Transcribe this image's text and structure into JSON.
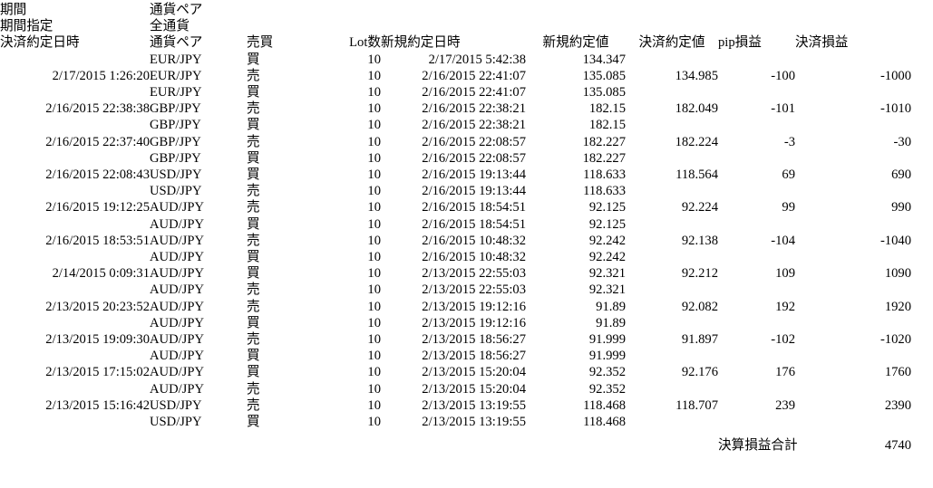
{
  "colors": {
    "text": "#000000",
    "background": "#ffffff"
  },
  "filters": {
    "period_label": "期間",
    "pair_label": "通貨ペア",
    "period_spec_label": "期間指定",
    "pair_value": "全通貨"
  },
  "table": {
    "headers": [
      "決済約定日時",
      "通貨ペア",
      "売買",
      "Lot数",
      "新規約定日時",
      "新規約定値",
      "決済約定値",
      "pip損益",
      "決済損益"
    ],
    "rows": [
      [
        "",
        "EUR/JPY",
        "買",
        "10",
        "2/17/2015 5:42:38",
        "134.347",
        "",
        "",
        ""
      ],
      [
        "2/17/2015 1:26:20",
        "EUR/JPY",
        "売",
        "10",
        "2/16/2015 22:41:07",
        "135.085",
        "134.985",
        "-100",
        "-1000"
      ],
      [
        "",
        "EUR/JPY",
        "買",
        "10",
        "2/16/2015 22:41:07",
        "135.085",
        "",
        "",
        ""
      ],
      [
        "2/16/2015 22:38:38",
        "GBP/JPY",
        "売",
        "10",
        "2/16/2015 22:38:21",
        "182.15",
        "182.049",
        "-101",
        "-1010"
      ],
      [
        "",
        "GBP/JPY",
        "買",
        "10",
        "2/16/2015 22:38:21",
        "182.15",
        "",
        "",
        ""
      ],
      [
        "2/16/2015 22:37:40",
        "GBP/JPY",
        "売",
        "10",
        "2/16/2015 22:08:57",
        "182.227",
        "182.224",
        "-3",
        "-30"
      ],
      [
        "",
        "GBP/JPY",
        "買",
        "10",
        "2/16/2015 22:08:57",
        "182.227",
        "",
        "",
        ""
      ],
      [
        "2/16/2015 22:08:43",
        "USD/JPY",
        "買",
        "10",
        "2/16/2015 19:13:44",
        "118.633",
        "118.564",
        "69",
        "690"
      ],
      [
        "",
        "USD/JPY",
        "売",
        "10",
        "2/16/2015 19:13:44",
        "118.633",
        "",
        "",
        ""
      ],
      [
        "2/16/2015 19:12:25",
        "AUD/JPY",
        "売",
        "10",
        "2/16/2015 18:54:51",
        "92.125",
        "92.224",
        "99",
        "990"
      ],
      [
        "",
        "AUD/JPY",
        "買",
        "10",
        "2/16/2015 18:54:51",
        "92.125",
        "",
        "",
        ""
      ],
      [
        "2/16/2015 18:53:51",
        "AUD/JPY",
        "売",
        "10",
        "2/16/2015 10:48:32",
        "92.242",
        "92.138",
        "-104",
        "-1040"
      ],
      [
        "",
        "AUD/JPY",
        "買",
        "10",
        "2/16/2015 10:48:32",
        "92.242",
        "",
        "",
        ""
      ],
      [
        "2/14/2015 0:09:31",
        "AUD/JPY",
        "買",
        "10",
        "2/13/2015 22:55:03",
        "92.321",
        "92.212",
        "109",
        "1090"
      ],
      [
        "",
        "AUD/JPY",
        "売",
        "10",
        "2/13/2015 22:55:03",
        "92.321",
        "",
        "",
        ""
      ],
      [
        "2/13/2015 20:23:52",
        "AUD/JPY",
        "売",
        "10",
        "2/13/2015 19:12:16",
        "91.89",
        "92.082",
        "192",
        "1920"
      ],
      [
        "",
        "AUD/JPY",
        "買",
        "10",
        "2/13/2015 19:12:16",
        "91.89",
        "",
        "",
        ""
      ],
      [
        "2/13/2015 19:09:30",
        "AUD/JPY",
        "売",
        "10",
        "2/13/2015 18:56:27",
        "91.999",
        "91.897",
        "-102",
        "-1020"
      ],
      [
        "",
        "AUD/JPY",
        "買",
        "10",
        "2/13/2015 18:56:27",
        "91.999",
        "",
        "",
        ""
      ],
      [
        "2/13/2015 17:15:02",
        "AUD/JPY",
        "買",
        "10",
        "2/13/2015 15:20:04",
        "92.352",
        "92.176",
        "176",
        "1760"
      ],
      [
        "",
        "AUD/JPY",
        "売",
        "10",
        "2/13/2015 15:20:04",
        "92.352",
        "",
        "",
        ""
      ],
      [
        "2/13/2015 15:16:42",
        "USD/JPY",
        "売",
        "10",
        "2/13/2015 13:19:55",
        "118.468",
        "118.707",
        "239",
        "2390"
      ],
      [
        "",
        "USD/JPY",
        "買",
        "10",
        "2/13/2015 13:19:55",
        "118.468",
        "",
        "",
        ""
      ]
    ]
  },
  "summary": {
    "total_label": "決算損益合計",
    "total_value": "4740"
  }
}
